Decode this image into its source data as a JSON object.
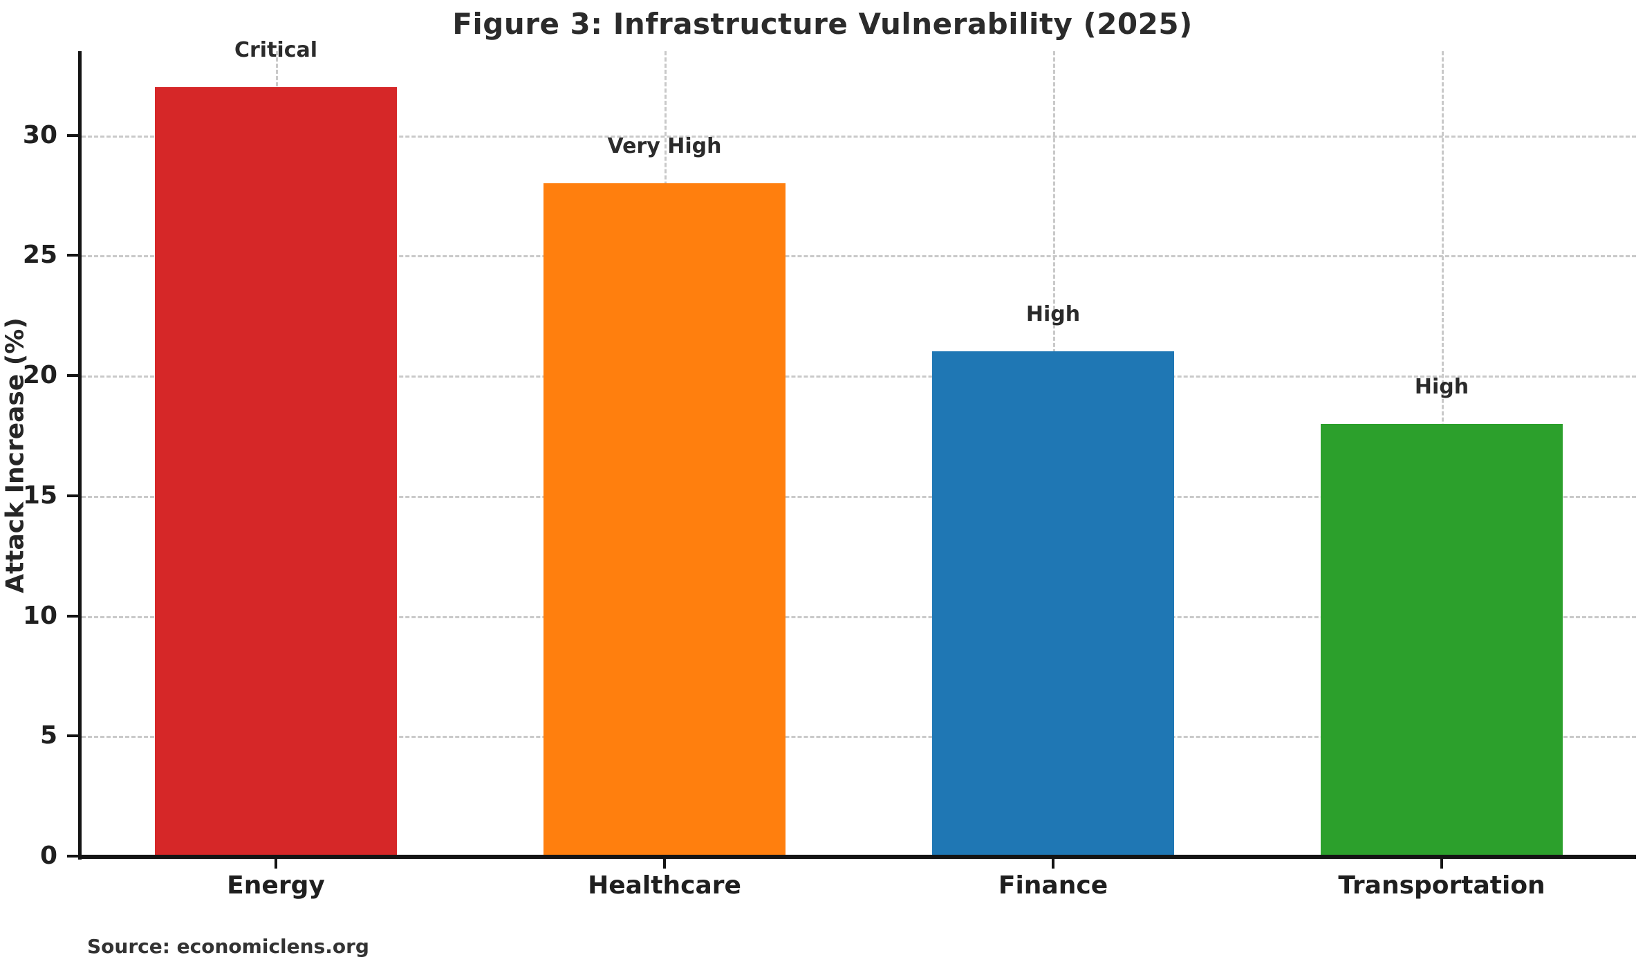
{
  "figure": {
    "title": "Figure 3: Infrastructure Vulnerability (2025)",
    "source": "Source: economiclens.org"
  },
  "chart_data": {
    "type": "bar",
    "title": "Figure 3: Infrastructure Vulnerability (2025)",
    "categories": [
      "Energy",
      "Healthcare",
      "Finance",
      "Transportation"
    ],
    "values": [
      32,
      28,
      21,
      18
    ],
    "bar_labels": [
      "Critical",
      "Very High",
      "High",
      "High"
    ],
    "bar_colors": [
      "#d62728",
      "#ff7f0e",
      "#1f77b4",
      "#2ca02c"
    ],
    "xlabel": "",
    "ylabel": "Attack Increase (%)",
    "yticks": [
      0,
      5,
      10,
      15,
      20,
      25,
      30
    ],
    "ylim": [
      0,
      33.5
    ],
    "grid": "dashed, horizontal and vertical, behind bars",
    "legend_position": "none",
    "source": "Source: economiclens.org",
    "colors": {
      "background": "#ffffff",
      "grid": "#c9c9c9",
      "spine": "#141414",
      "text": "#2b2b2b"
    }
  }
}
